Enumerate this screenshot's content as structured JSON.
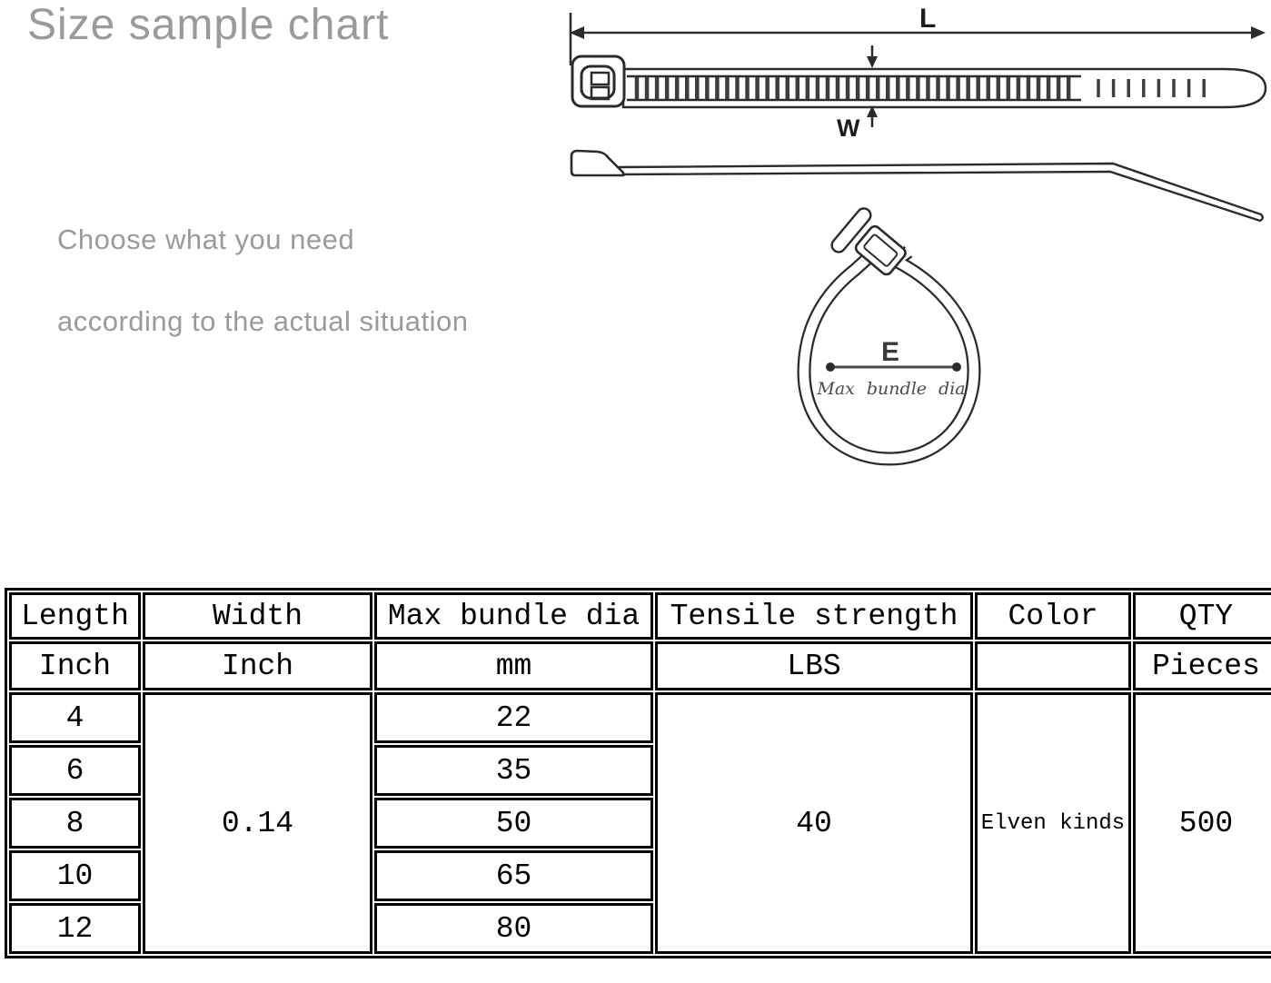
{
  "page": {
    "title": "Size sample chart",
    "note_line1": "Choose what you need",
    "note_line2": "according to the actual situation"
  },
  "diagram": {
    "length_label": "L",
    "width_label": "W",
    "diameter_label": "E",
    "diameter_caption": "Max bundle dia"
  },
  "table": {
    "headers": [
      "Length",
      "Width",
      "Max bundle dia",
      "Tensile strength",
      "Color",
      "QTY"
    ],
    "units": [
      "Inch",
      "Inch",
      "mm",
      "LBS",
      "",
      "Pieces"
    ],
    "length_values": [
      "4",
      "6",
      "8",
      "10",
      "12"
    ],
    "max_bundle_dia_values": [
      "22",
      "35",
      "50",
      "65",
      "80"
    ],
    "width_value": "0.14",
    "tensile_strength_value": "40",
    "color_value": "Elven kinds",
    "qty_value": "500"
  }
}
